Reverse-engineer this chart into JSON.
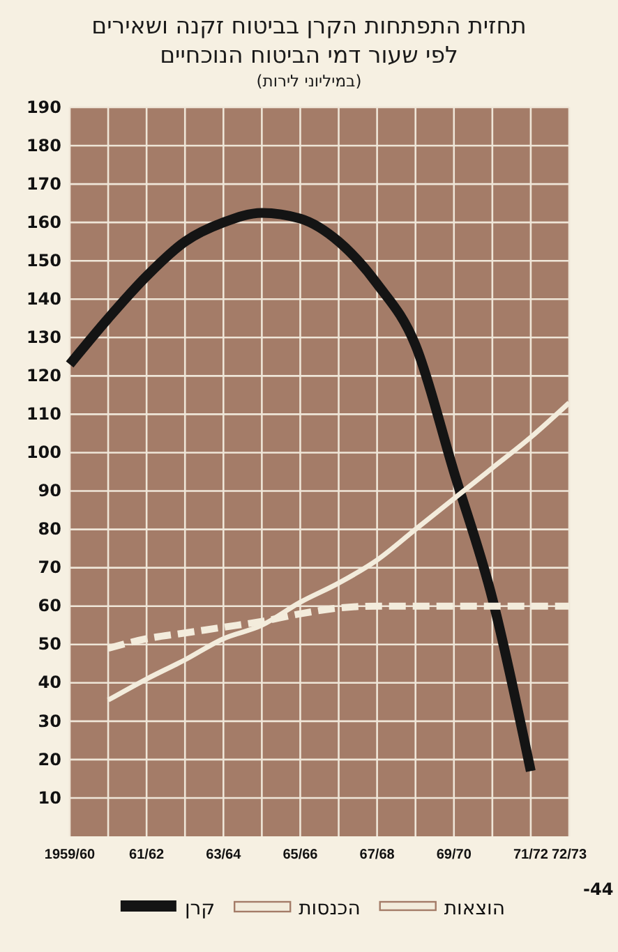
{
  "chart_data": {
    "type": "line",
    "title": "תחזית התפתחות הקרן בביטוח זקנה ושאירים\nלפי שעור דמי הביטוח הנוכחיים",
    "subtitle": "(במיליוני לירות)",
    "categories": [
      "1959/60",
      null,
      "61/62",
      null,
      "63/64",
      null,
      "65/66",
      null,
      "67/68",
      null,
      "69/70",
      null,
      "71/72",
      "72/73"
    ],
    "ylim": [
      0,
      190
    ],
    "yticks": [
      10,
      20,
      30,
      40,
      50,
      60,
      70,
      80,
      90,
      100,
      110,
      120,
      130,
      140,
      150,
      160,
      170,
      180,
      190
    ],
    "grid": true,
    "legend": "bottom",
    "annotations": [
      "-44"
    ],
    "series": [
      {
        "name": "קרן",
        "color": "#141414",
        "line_style": "solid",
        "values": [
          123,
          135,
          146,
          155,
          160,
          162.5,
          161,
          155,
          144,
          128,
          95,
          62,
          17,
          null
        ]
      },
      {
        "name": "הכנסות",
        "color": "#f3ecdc",
        "line_style": "dashed",
        "values": [
          null,
          49,
          51.5,
          53,
          54.5,
          56,
          58,
          59.5,
          60,
          60,
          60,
          60,
          60,
          60
        ]
      },
      {
        "name": "הוצאות",
        "color": "#f3ecdc",
        "line_style": "solid",
        "values": [
          null,
          35.5,
          41,
          46,
          51.5,
          55,
          61,
          66,
          72,
          80,
          88,
          96,
          104,
          113
        ]
      }
    ]
  }
}
